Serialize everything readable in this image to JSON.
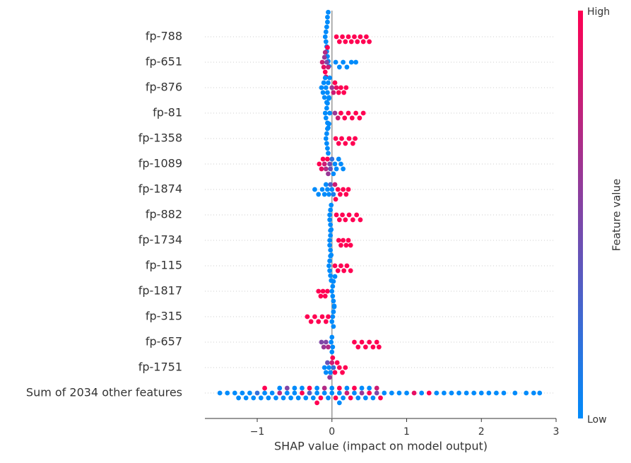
{
  "chart_data": {
    "type": "beeswarm",
    "xlabel": "SHAP value (impact on model output)",
    "xlim": [
      -1.7,
      3.0
    ],
    "xticks": [
      {
        "value": -1,
        "label": "−1"
      },
      0,
      1,
      2,
      3
    ],
    "zero_line": true,
    "grid": true,
    "colorbar": {
      "label": "Feature value",
      "high_label": "High",
      "low_label": "Low",
      "low_color": "#008bfb",
      "high_color": "#ff0052"
    },
    "series": [
      {
        "name": "fp-788",
        "values": [
          -0.09,
          -0.08,
          -0.08,
          -0.07,
          -0.07,
          -0.07,
          -0.06,
          -0.06,
          -0.06,
          -0.05,
          -0.05,
          -0.04,
          0.06,
          0.1,
          0.14,
          0.18,
          0.22,
          0.26,
          0.3,
          0.34,
          0.38,
          0.42,
          0.46,
          0.5
        ],
        "feature_values": [
          0,
          0,
          0,
          0,
          0,
          0,
          0,
          0,
          0,
          0,
          0,
          0,
          1,
          1,
          1,
          1,
          1,
          1,
          1,
          1,
          1,
          1,
          1,
          1
        ]
      },
      {
        "name": "fp-651",
        "values": [
          -0.13,
          -0.11,
          -0.1,
          -0.09,
          -0.09,
          -0.08,
          -0.07,
          -0.06,
          -0.05,
          0.05,
          0.1,
          0.15,
          0.2,
          0.26,
          0.32
        ],
        "feature_values": [
          0.8,
          0.9,
          0.6,
          1,
          0.7,
          0.9,
          0.5,
          1,
          0.8,
          0,
          0,
          0,
          0,
          0,
          0
        ]
      },
      {
        "name": "fp-876",
        "values": [
          -0.14,
          -0.12,
          -0.11,
          -0.1,
          -0.09,
          -0.08,
          -0.07,
          -0.06,
          -0.05,
          -0.04,
          -0.03,
          0.0,
          0.02,
          0.04,
          0.06,
          0.09,
          0.12,
          0.16,
          0.19
        ],
        "feature_values": [
          0,
          0,
          0,
          0,
          0,
          0,
          0,
          0,
          0,
          0,
          0,
          0.6,
          0.8,
          1,
          0.9,
          1,
          1,
          1,
          1
        ]
      },
      {
        "name": "fp-81",
        "values": [
          -0.09,
          -0.08,
          -0.07,
          -0.06,
          -0.06,
          -0.05,
          -0.04,
          -0.03,
          0.04,
          0.08,
          0.12,
          0.17,
          0.22,
          0.27,
          0.32,
          0.37,
          0.42
        ],
        "feature_values": [
          0,
          0,
          0,
          0,
          0,
          0,
          0,
          0,
          0.6,
          0.8,
          1,
          1,
          1,
          1,
          1,
          1,
          1
        ]
      },
      {
        "name": "fp-1358",
        "values": [
          -0.08,
          -0.07,
          -0.07,
          -0.06,
          -0.06,
          -0.05,
          -0.04,
          0.05,
          0.09,
          0.13,
          0.18,
          0.23,
          0.28,
          0.31
        ],
        "feature_values": [
          0,
          0,
          0,
          0,
          0,
          0,
          0,
          1,
          1,
          1,
          1,
          1,
          1,
          1
        ]
      },
      {
        "name": "fp-1089",
        "values": [
          -0.17,
          -0.14,
          -0.12,
          -0.1,
          -0.08,
          -0.06,
          -0.05,
          -0.03,
          -0.02,
          0.0,
          0.02,
          0.04,
          0.06,
          0.09,
          0.12,
          0.15
        ],
        "feature_values": [
          1,
          0.9,
          1,
          0.8,
          0.7,
          1,
          0.6,
          0.5,
          0.4,
          0.2,
          0,
          0,
          0,
          0,
          0,
          0
        ]
      },
      {
        "name": "fp-1874",
        "values": [
          -0.23,
          -0.18,
          -0.13,
          -0.1,
          -0.08,
          -0.06,
          -0.04,
          -0.02,
          0.0,
          0.02,
          0.04,
          0.05,
          0.08,
          0.11,
          0.15,
          0.19,
          0.22
        ],
        "feature_values": [
          0,
          0,
          0,
          0,
          0,
          0,
          0,
          0.3,
          0,
          0.1,
          0.8,
          1,
          1,
          1,
          1,
          1,
          1
        ]
      },
      {
        "name": "fp-882",
        "values": [
          -0.03,
          -0.03,
          -0.02,
          -0.02,
          -0.01,
          -0.01,
          0.06,
          0.1,
          0.14,
          0.18,
          0.23,
          0.28,
          0.33,
          0.38
        ],
        "feature_values": [
          0,
          0,
          0,
          0,
          0,
          0,
          1,
          1,
          1,
          1,
          1,
          1,
          1,
          1
        ]
      },
      {
        "name": "fp-1734",
        "values": [
          -0.03,
          -0.03,
          -0.02,
          -0.02,
          -0.02,
          -0.01,
          0.09,
          0.12,
          0.15,
          0.19,
          0.22,
          0.25
        ],
        "feature_values": [
          0,
          0,
          0,
          0,
          0,
          0,
          1,
          1,
          1,
          1,
          1,
          1
        ]
      },
      {
        "name": "fp-115",
        "values": [
          -0.04,
          -0.03,
          -0.03,
          -0.02,
          -0.02,
          -0.01,
          0.04,
          0.08,
          0.12,
          0.16,
          0.2,
          0.25
        ],
        "feature_values": [
          0,
          0,
          0,
          0,
          0,
          0,
          1,
          1,
          1,
          1,
          1,
          1
        ]
      },
      {
        "name": "fp-1817",
        "values": [
          -0.18,
          -0.15,
          -0.12,
          -0.09,
          -0.06,
          0.0,
          0.01,
          0.01,
          0.02,
          0.02,
          0.03,
          0.04
        ],
        "feature_values": [
          1,
          1,
          1,
          1,
          1,
          0,
          0,
          0,
          0,
          0,
          0,
          0
        ]
      },
      {
        "name": "fp-315",
        "values": [
          -0.33,
          -0.28,
          -0.23,
          -0.18,
          -0.13,
          -0.08,
          -0.05,
          0.0,
          0.01,
          0.02,
          0.02,
          0.03
        ],
        "feature_values": [
          1,
          1,
          1,
          1,
          1,
          1,
          1,
          0,
          0,
          0,
          0,
          0
        ]
      },
      {
        "name": "fp-657",
        "values": [
          -0.14,
          -0.11,
          -0.08,
          -0.05,
          -0.01,
          0.0,
          0.0,
          0.01,
          0.3,
          0.35,
          0.4,
          0.45,
          0.5,
          0.55,
          0.6,
          0.63
        ],
        "feature_values": [
          0.5,
          0.6,
          0.5,
          0.7,
          0,
          0,
          0,
          0,
          1,
          1,
          1,
          1,
          1,
          1,
          1,
          1
        ]
      },
      {
        "name": "fp-1751",
        "values": [
          -0.1,
          -0.08,
          -0.06,
          -0.04,
          -0.03,
          -0.02,
          0.0,
          0.01,
          0.02,
          0.04,
          0.07,
          0.1,
          0.14,
          0.18
        ],
        "feature_values": [
          0,
          0,
          0.4,
          0,
          0.6,
          0,
          0.8,
          1,
          0.2,
          1,
          1,
          1,
          1,
          1
        ]
      },
      {
        "name": "Sum of 2034 other features",
        "values": [
          -1.5,
          -1.4,
          -1.3,
          -1.25,
          -1.2,
          -1.15,
          -1.1,
          -1.05,
          -1.0,
          -0.95,
          -0.9,
          -0.85,
          -0.8,
          -0.75,
          -0.7,
          -0.65,
          -0.6,
          -0.55,
          -0.5,
          -0.45,
          -0.4,
          -0.35,
          -0.3,
          -0.25,
          -0.2,
          -0.15,
          -0.1,
          -0.05,
          0.0,
          0.05,
          0.1,
          0.15,
          0.2,
          0.25,
          0.3,
          0.35,
          0.4,
          0.45,
          0.5,
          0.55,
          0.6,
          0.65,
          0.7,
          0.8,
          0.9,
          1.0,
          1.1,
          1.2,
          1.3,
          1.4,
          1.5,
          1.6,
          1.7,
          1.8,
          1.9,
          2.0,
          2.1,
          2.2,
          2.3,
          2.45,
          2.6,
          2.7,
          2.78,
          -0.9,
          -0.7,
          -0.6,
          -0.4,
          -0.3,
          -0.2,
          -0.1,
          0.0,
          0.1,
          0.2,
          0.3,
          0.4,
          0.5,
          0.6,
          0.1,
          -0.5,
          -0.2
        ],
        "feature_values": [
          0,
          0,
          0,
          0,
          0,
          0,
          0,
          0,
          0.2,
          0,
          0,
          0,
          0,
          0,
          0.7,
          0,
          0,
          0,
          0,
          0,
          1,
          0,
          0.3,
          0,
          0,
          1,
          0,
          0,
          0,
          1,
          0,
          0,
          0.8,
          1,
          0,
          0,
          0.6,
          0,
          1,
          0,
          0.5,
          1,
          0,
          0,
          0,
          0,
          0.9,
          0,
          1,
          0,
          0,
          0,
          0,
          0,
          0,
          0,
          0,
          0,
          0,
          0,
          0,
          0,
          0,
          1,
          0,
          0.5,
          0,
          1,
          0,
          0.7,
          0,
          1,
          0,
          1,
          0,
          0,
          0.8,
          0,
          0,
          1
        ]
      }
    ]
  }
}
